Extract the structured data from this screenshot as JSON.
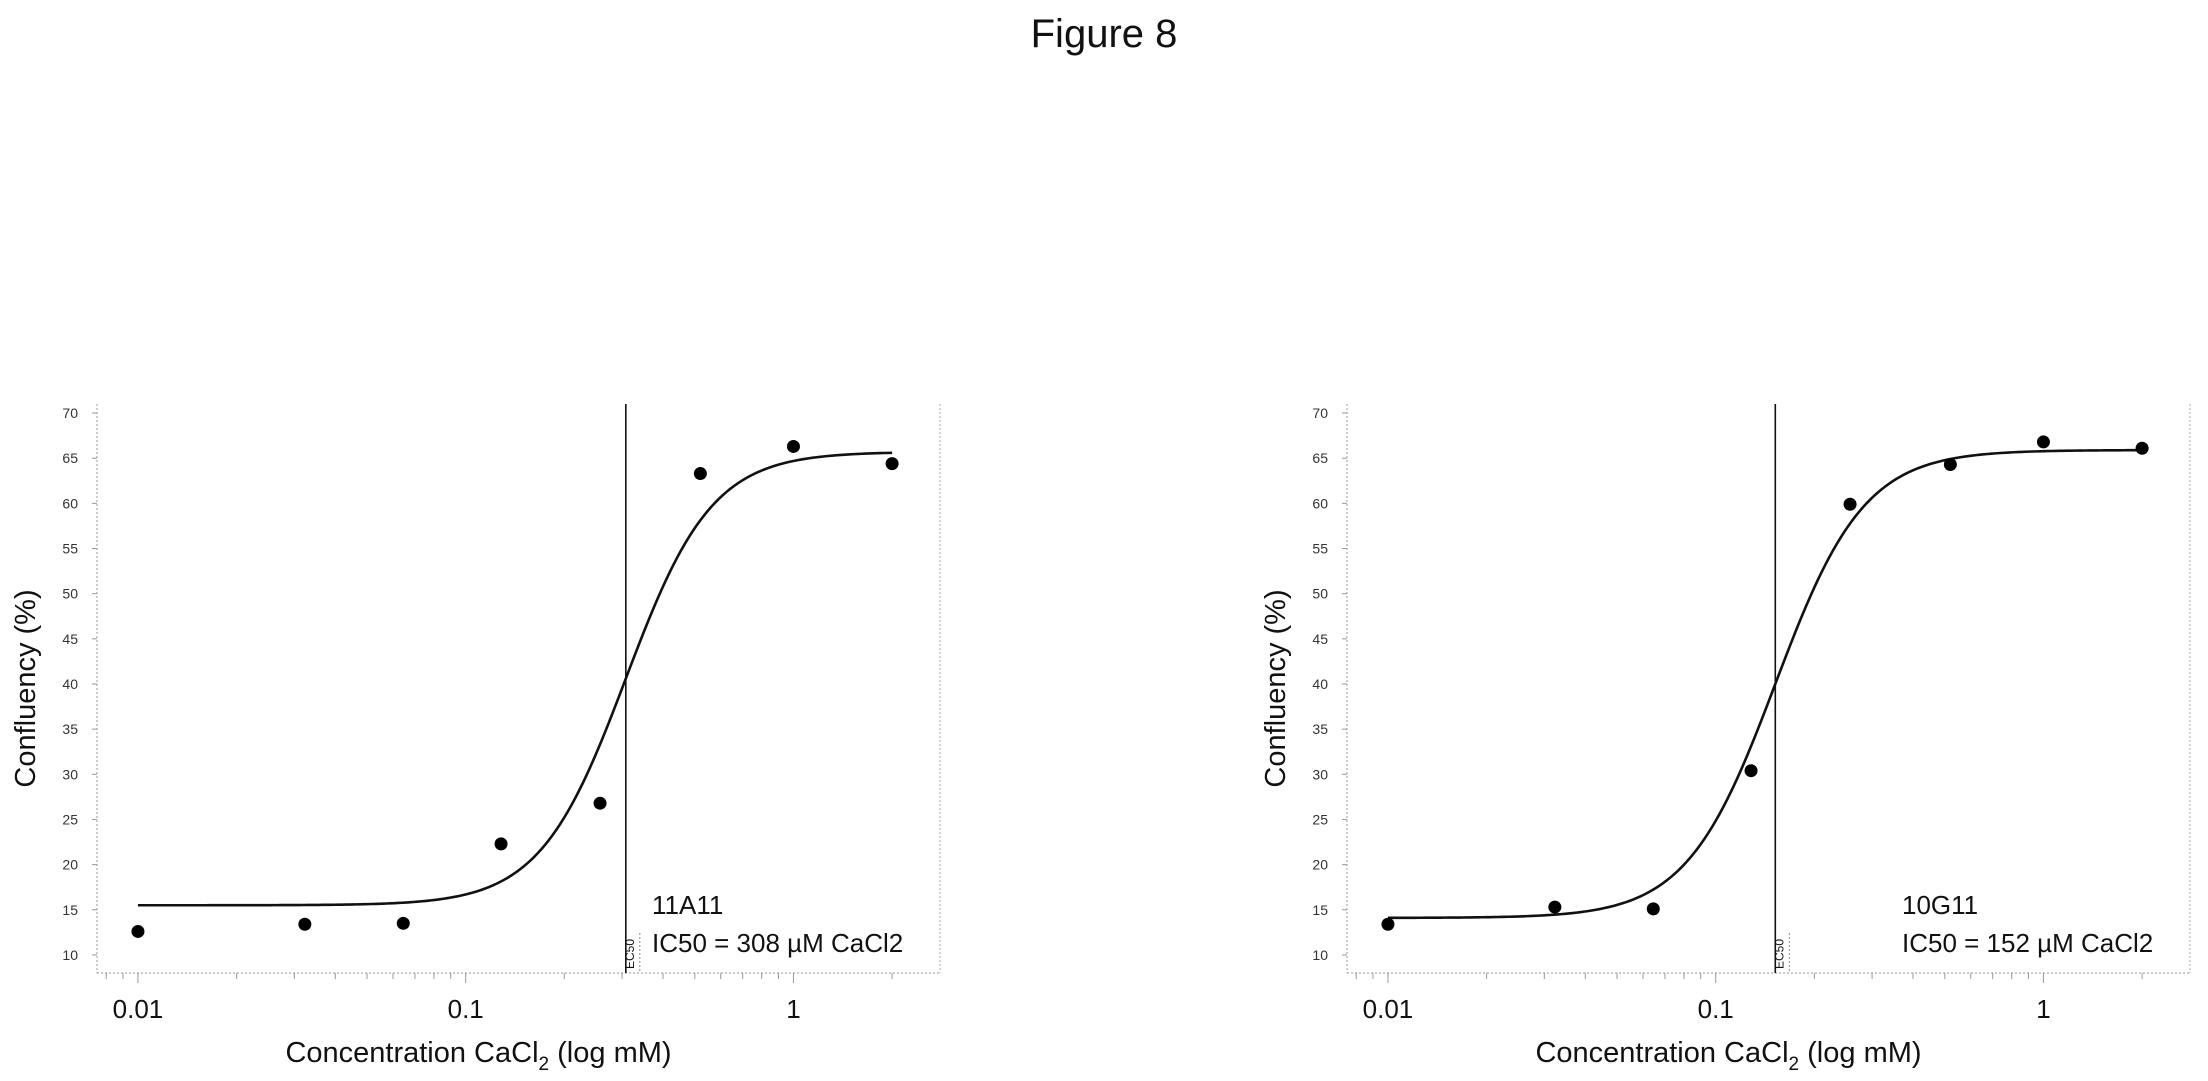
{
  "figure_title": "Figure 8",
  "chart_data": [
    {
      "type": "scatter",
      "subtype": "dose-response (sigmoid fit)",
      "xlabel": "Concentration CaCl",
      "xlabel_sub": "2",
      "xlabel_tail": " (log mM)",
      "ylabel": "Confluency (%)",
      "x_scale": "log",
      "xlim": [
        0.0075,
        2.8
      ],
      "ylim": [
        8,
        71
      ],
      "x_ticks": [
        0.01,
        0.1,
        1
      ],
      "x_tick_labels": [
        "0.01",
        "0.1",
        "1"
      ],
      "y_ticks": [
        10,
        15,
        20,
        25,
        30,
        35,
        40,
        45,
        50,
        55,
        60,
        65,
        70
      ],
      "grid": false,
      "points": {
        "x": [
          0.01,
          0.0323,
          0.0645,
          0.1282,
          0.257,
          0.52,
          1.0,
          2.0
        ],
        "y": [
          12.6,
          13.4,
          13.5,
          22.3,
          26.8,
          63.3,
          66.3,
          64.4
        ]
      },
      "fit": {
        "bottom": 15.5,
        "top": 65.7,
        "ec50": 0.308,
        "hill": 3.3,
        "x_range": [
          0.01,
          2.0
        ]
      },
      "ec50_line_x": 0.308,
      "ec50_label": "EC50",
      "annotation_lines": [
        "11A11",
        "IC50 = 308 µM CaCl2"
      ]
    },
    {
      "type": "scatter",
      "subtype": "dose-response (sigmoid fit)",
      "xlabel": "Concentration CaCl",
      "xlabel_sub": "2",
      "xlabel_tail": " (log mM)",
      "ylabel": "Confluency (%)",
      "x_scale": "log",
      "xlim": [
        0.0075,
        2.8
      ],
      "ylim": [
        8,
        71
      ],
      "x_ticks": [
        0.01,
        0.1,
        1
      ],
      "x_tick_labels": [
        "0.01",
        "0.1",
        "1"
      ],
      "y_ticks": [
        10,
        15,
        20,
        25,
        30,
        35,
        40,
        45,
        50,
        55,
        60,
        65,
        70
      ],
      "grid": false,
      "points": {
        "x": [
          0.01,
          0.0323,
          0.0645,
          0.1282,
          0.257,
          0.52,
          1.0,
          2.0
        ],
        "y": [
          13.4,
          15.3,
          15.1,
          30.4,
          59.9,
          64.3,
          66.8,
          66.1
        ]
      },
      "fit": {
        "bottom": 14.1,
        "top": 65.9,
        "ec50": 0.152,
        "hill": 3.2,
        "x_range": [
          0.01,
          2.0
        ]
      },
      "ec50_line_x": 0.152,
      "ec50_label": "EC50",
      "annotation_lines": [
        "10G11",
        "IC50 = 152 µM CaCl2"
      ]
    }
  ]
}
